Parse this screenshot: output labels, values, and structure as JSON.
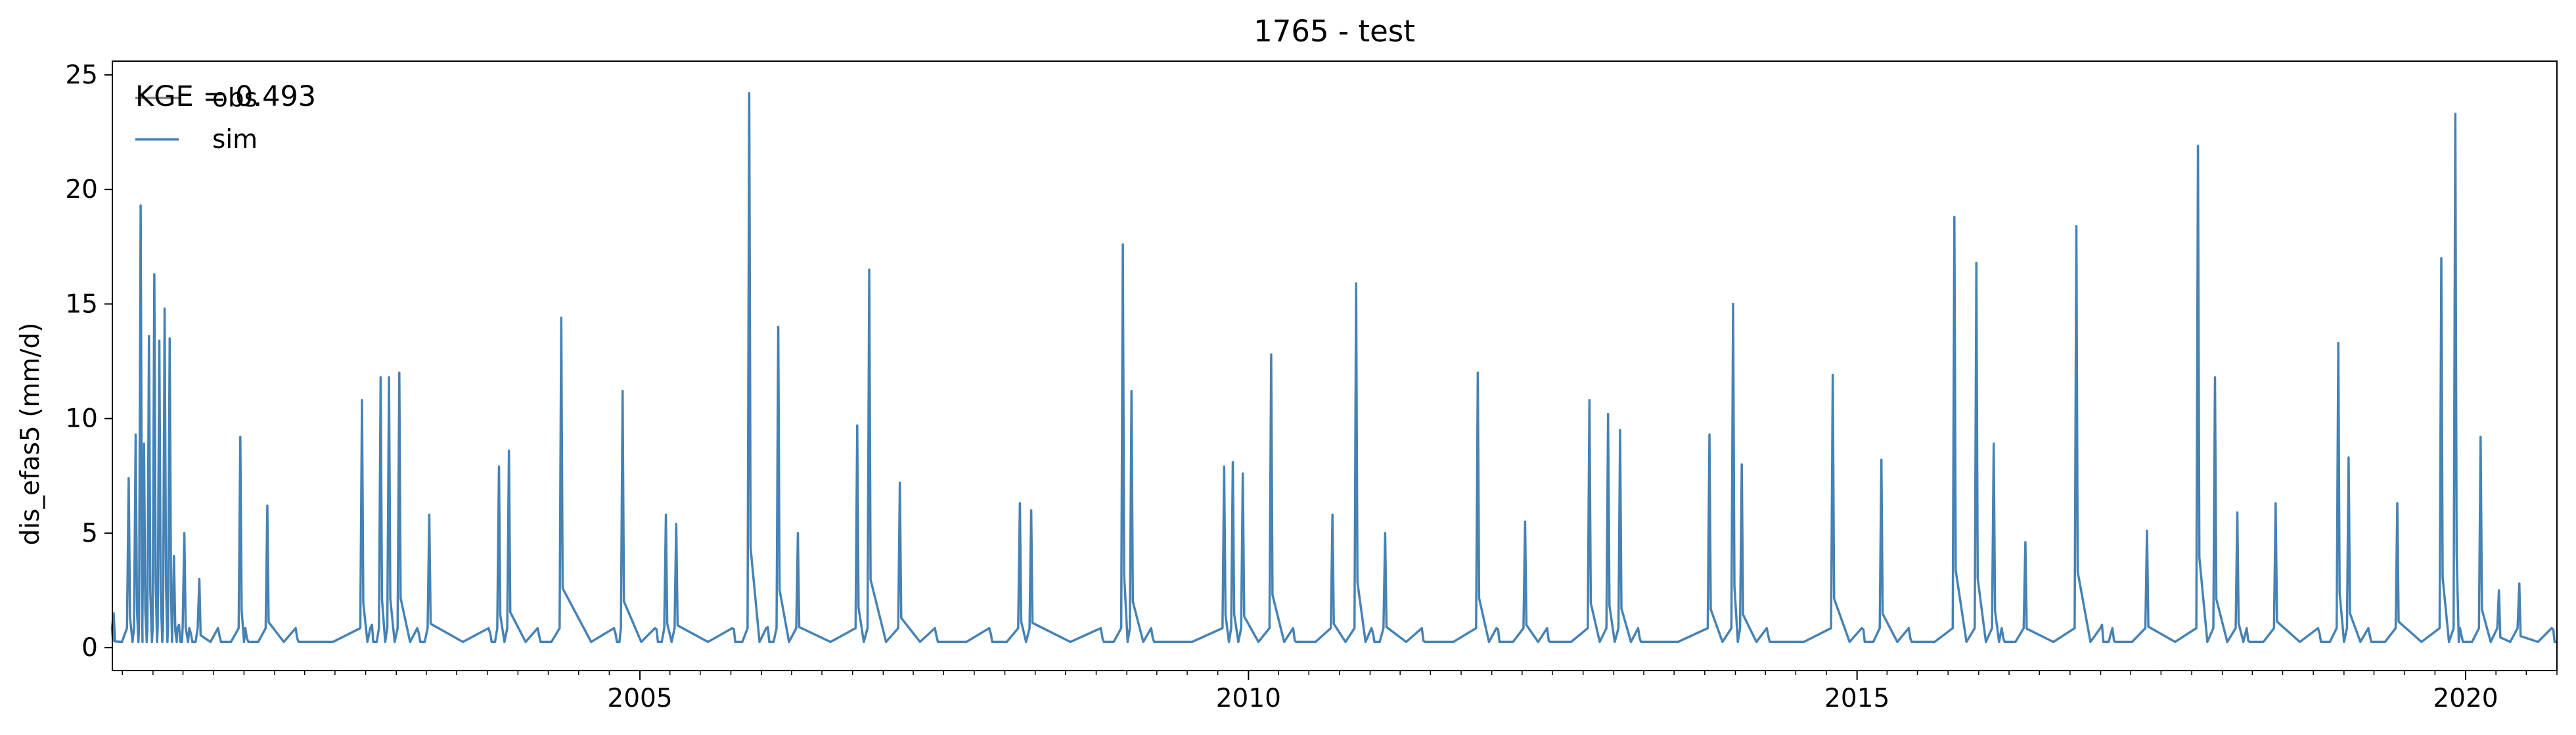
{
  "chart_data": {
    "type": "line",
    "title": "1765 - test",
    "xlabel": "",
    "ylabel": "dis_efas5 (mm/d)",
    "xlim": [
      "2000-09-01",
      "2020-10-01"
    ],
    "ylim": [
      -1.0,
      25.6
    ],
    "x_major_ticks": [
      "2005",
      "2010",
      "2015",
      "2020"
    ],
    "y_ticks": [
      0,
      5,
      10,
      15,
      20,
      25
    ],
    "y_tick_labels": [
      "0",
      "5",
      "10",
      "15",
      "20",
      "25"
    ],
    "grid": false,
    "legend": {
      "placement": "upper-left",
      "entries": [
        "obs",
        "sim"
      ]
    },
    "annotation": "KGE = 0.493",
    "series": [
      {
        "name": "obs",
        "color": "#808080",
        "x": [],
        "values": []
      },
      {
        "name": "sim",
        "color": "#4682b4",
        "x": [
          "2000-09-05",
          "2000-10-20",
          "2000-11-10",
          "2000-11-25",
          "2000-12-05",
          "2000-12-20",
          "2001-01-05",
          "2001-01-20",
          "2001-02-05",
          "2001-02-20",
          "2001-03-05",
          "2001-03-20",
          "2001-04-05",
          "2001-04-25",
          "2001-05-20",
          "2001-07-20",
          "2001-09-20",
          "2001-10-10",
          "2001-12-10",
          "2002-03-10",
          "2002-09-20",
          "2002-10-20",
          "2002-11-15",
          "2002-12-10",
          "2003-01-10",
          "2003-03-10",
          "2003-04-10",
          "2003-10-10",
          "2003-11-05",
          "2003-12-05",
          "2004-03-05",
          "2004-05-10",
          "2004-10-20",
          "2004-11-10",
          "2005-02-20",
          "2005-03-20",
          "2005-04-20",
          "2005-10-10",
          "2005-11-25",
          "2006-01-20",
          "2006-02-20",
          "2006-04-20",
          "2006-10-15",
          "2006-11-20",
          "2007-02-20",
          "2007-06-10",
          "2007-11-20",
          "2008-02-15",
          "2008-03-20",
          "2008-10-20",
          "2008-12-20",
          "2009-01-15",
          "2009-03-20",
          "2009-10-20",
          "2009-11-15",
          "2009-12-15",
          "2010-03-10",
          "2010-05-20",
          "2010-09-10",
          "2010-11-20",
          "2011-01-10",
          "2011-02-15",
          "2011-06-10",
          "2011-11-20",
          "2012-01-20",
          "2012-04-10",
          "2012-06-20",
          "2012-10-20",
          "2012-12-15",
          "2013-01-20",
          "2013-03-20",
          "2013-10-15",
          "2013-12-25",
          "2014-01-20",
          "2014-04-10",
          "2014-10-20",
          "2015-01-20",
          "2015-03-15",
          "2015-06-10",
          "2015-10-20",
          "2015-12-25",
          "2016-02-15",
          "2016-03-15",
          "2016-05-20",
          "2016-10-20",
          "2017-01-05",
          "2017-02-10",
          "2017-05-20",
          "2017-10-20",
          "2017-12-10",
          "2018-02-15",
          "2018-03-20",
          "2018-06-10",
          "2018-10-20",
          "2018-12-15",
          "2019-01-15",
          "2019-03-20",
          "2019-06-10",
          "2019-10-20",
          "2019-12-01",
          "2019-12-20",
          "2020-02-15",
          "2020-04-10",
          "2020-06-10",
          "2020-09-20"
        ],
        "values": [
          1.5,
          7.4,
          9.3,
          19.3,
          8.9,
          13.6,
          16.3,
          13.4,
          14.8,
          13.5,
          4.0,
          1.0,
          5.0,
          0.6,
          3.0,
          0.5,
          9.2,
          0.4,
          6.2,
          0.4,
          10.8,
          1.0,
          11.8,
          11.8,
          12.0,
          0.6,
          5.8,
          0.6,
          7.9,
          8.6,
          0.5,
          14.4,
          0.6,
          11.2,
          0.8,
          5.8,
          5.4,
          0.8,
          24.2,
          0.9,
          14.0,
          5.0,
          9.7,
          16.5,
          7.2,
          0.5,
          0.6,
          6.3,
          6.0,
          0.4,
          17.6,
          11.2,
          0.4,
          7.9,
          8.1,
          7.6,
          12.8,
          0.3,
          5.8,
          15.9,
          0.6,
          5.0,
          0.3,
          12.0,
          0.8,
          5.5,
          0.3,
          10.8,
          10.2,
          9.5,
          0.4,
          9.3,
          15.0,
          8.0,
          0.5,
          11.9,
          0.8,
          8.2,
          0.4,
          18.8,
          16.8,
          8.9,
          0.4,
          4.6,
          18.4,
          1.0,
          0.3,
          5.1,
          21.9,
          11.8,
          5.9,
          0.3,
          6.3,
          0.6,
          13.3,
          8.3,
          0.5,
          6.3,
          17.0,
          23.3,
          0.5,
          9.2,
          2.5,
          2.8,
          0.8
        ]
      }
    ]
  }
}
